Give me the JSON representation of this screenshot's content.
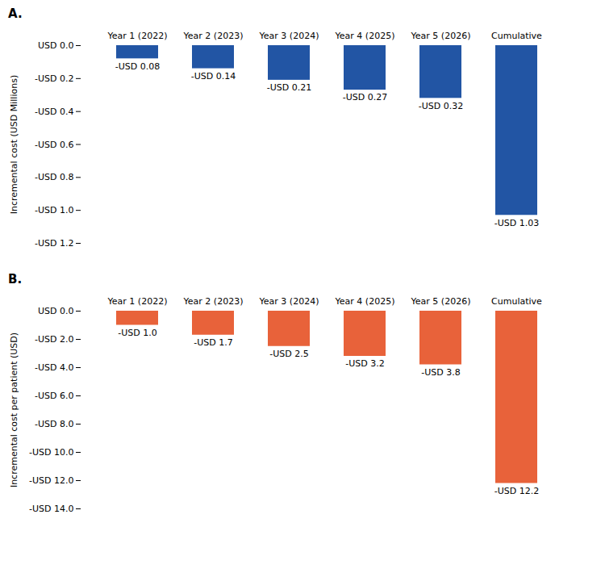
{
  "chart_data": [
    {
      "type": "bar",
      "title": "A.",
      "categories": [
        "Year 1 (2022)",
        "Year 2 (2023)",
        "Year 3 (2024)",
        "Year 4 (2025)",
        "Year 5 (2026)",
        "Cumulative"
      ],
      "values": [
        -0.08,
        -0.14,
        -0.21,
        -0.27,
        -0.32,
        -1.03
      ],
      "value_labels": [
        "-USD 0.08",
        "-USD 0.14",
        "-USD 0.21",
        "-USD 0.27",
        "-USD 0.32",
        "-USD 1.03"
      ],
      "data_labels": true,
      "color": "#2255a4",
      "ylabel": "Incremental cost (USD Millions)",
      "ylim": [
        -1.2,
        0.0
      ],
      "yticks": [
        {
          "value": 0.0,
          "label": "USD 0.0"
        },
        {
          "value": -0.2,
          "label": "-USD 0.2"
        },
        {
          "value": -0.4,
          "label": "-USD 0.4"
        },
        {
          "value": -0.6,
          "label": "-USD 0.6"
        },
        {
          "value": -0.8,
          "label": "-USD 0.8"
        },
        {
          "value": -1.0,
          "label": "-USD 1.0"
        },
        {
          "value": -1.2,
          "label": "-USD 1.2"
        }
      ],
      "grid": false
    },
    {
      "type": "bar",
      "title": "B.",
      "categories": [
        "Year 1 (2022)",
        "Year 2 (2023)",
        "Year 3 (2024)",
        "Year 4 (2025)",
        "Year 5 (2026)",
        "Cumulative"
      ],
      "values": [
        -1.0,
        -1.7,
        -2.5,
        -3.2,
        -3.8,
        -12.2
      ],
      "value_labels": [
        "-USD 1.0",
        "-USD 1.7",
        "-USD 2.5",
        "-USD 3.2",
        "-USD 3.8",
        "-USD 12.2"
      ],
      "data_labels": true,
      "color": "#e8623a",
      "ylabel": "Incremental cost per patient (USD)",
      "ylim": [
        -14.0,
        0.0
      ],
      "yticks": [
        {
          "value": 0.0,
          "label": "USD 0.0"
        },
        {
          "value": -2.0,
          "label": "-USD 2.0"
        },
        {
          "value": -4.0,
          "label": "-USD 4.0"
        },
        {
          "value": -6.0,
          "label": "-USD 6.0"
        },
        {
          "value": -8.0,
          "label": "-USD 8.0"
        },
        {
          "value": -10.0,
          "label": "-USD 10.0"
        },
        {
          "value": -12.0,
          "label": "-USD 12.0"
        },
        {
          "value": -14.0,
          "label": "-USD 14.0"
        }
      ],
      "grid": false
    }
  ]
}
